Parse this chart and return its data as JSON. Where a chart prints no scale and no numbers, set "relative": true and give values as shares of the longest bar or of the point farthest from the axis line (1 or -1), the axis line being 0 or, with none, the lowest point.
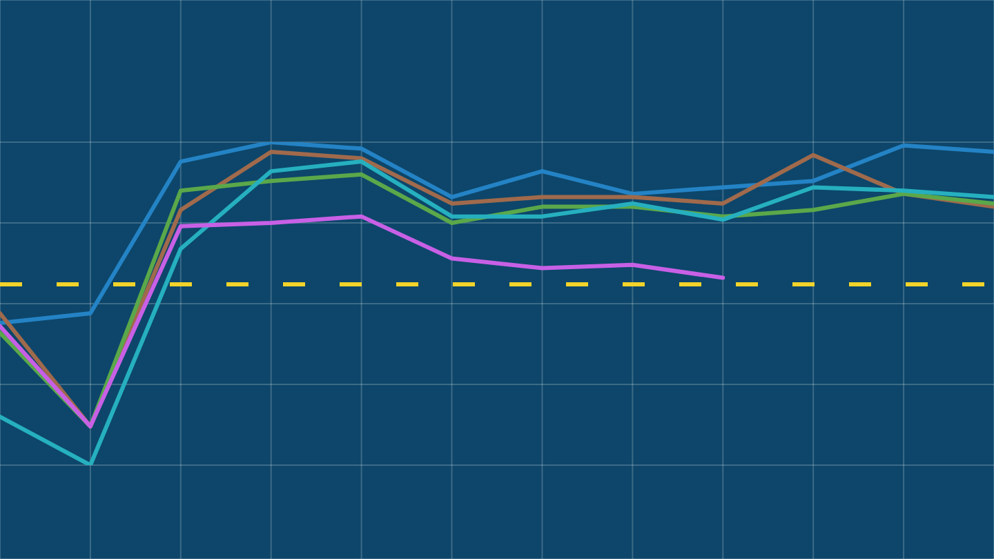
{
  "chart_data": {
    "type": "line",
    "relative": true,
    "categories": [
      null,
      null,
      null,
      null,
      null,
      null,
      null,
      null,
      null,
      null,
      null,
      null
    ],
    "series": [
      {
        "color": "#2483c5",
        "values": [
          0.44,
          0.47,
          0.94,
          1.0,
          0.98,
          0.83,
          0.91,
          0.84,
          0.86,
          0.88,
          0.99,
          0.97
        ]
      },
      {
        "color": "#a06a4c",
        "values": [
          0.47,
          0.12,
          0.79,
          0.97,
          0.95,
          0.81,
          0.83,
          0.83,
          0.81,
          0.96,
          0.84,
          0.8
        ]
      },
      {
        "color": "#5aa84a",
        "values": [
          0.41,
          0.12,
          0.85,
          0.88,
          0.9,
          0.75,
          0.8,
          0.8,
          0.77,
          0.79,
          0.84,
          0.81
        ]
      },
      {
        "color": "#26b0bf",
        "values": [
          0.15,
          0.0,
          0.67,
          0.91,
          0.94,
          0.77,
          0.77,
          0.81,
          0.76,
          0.86,
          0.85,
          0.83
        ]
      },
      {
        "color": "#c860e6",
        "values": [
          0.43,
          0.12,
          0.74,
          0.75,
          0.77,
          0.64,
          0.61,
          0.62,
          0.58,
          null,
          null,
          null
        ]
      }
    ],
    "ref_lines": [
      {
        "axis": "y",
        "value": 0.56,
        "color": "#f2d32a",
        "line_style": "dashed"
      }
    ],
    "grid": true,
    "marker": "none",
    "line_style": "solid"
  }
}
